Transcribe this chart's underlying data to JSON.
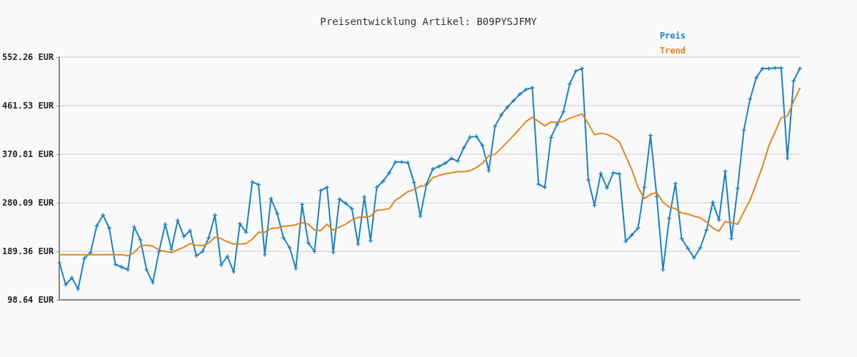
{
  "chart_data": {
    "type": "line",
    "title": "Preisentwicklung Artikel: B09PYSJFMY",
    "categories": [
      null,
      null,
      null,
      null,
      null,
      null,
      null,
      null,
      null,
      null,
      null,
      null,
      null,
      null,
      null,
      null,
      null,
      null,
      null,
      null,
      null,
      null,
      null,
      null,
      null,
      null,
      null,
      null,
      null,
      null,
      null,
      null,
      null,
      null,
      null,
      null,
      null,
      null,
      null,
      null,
      null,
      null,
      null,
      null,
      null,
      null,
      null,
      null,
      null,
      null,
      null,
      null,
      null,
      null,
      null,
      null,
      null,
      null,
      null,
      null,
      null,
      null,
      null,
      null,
      null,
      null,
      null,
      null,
      null,
      null,
      null,
      null,
      null,
      null,
      null,
      null,
      null,
      null,
      null,
      null,
      null,
      null,
      null,
      null,
      null,
      null,
      null,
      null,
      null,
      null,
      null,
      null,
      null,
      null,
      null,
      null,
      null,
      null,
      null,
      null,
      null,
      null,
      null,
      null,
      null,
      null,
      null,
      null,
      null,
      null,
      null,
      null,
      null,
      null,
      null,
      null,
      null,
      null,
      null,
      null
    ],
    "series": [
      {
        "name": "Preis",
        "color": "#1a80c9",
        "marker": "cross",
        "values": [
          168,
          127,
          140,
          119,
          176,
          187,
          237,
          257,
          233,
          165,
          160,
          155,
          235,
          211,
          155,
          131,
          189,
          240,
          193,
          247,
          217,
          228,
          181,
          189,
          215,
          257,
          164,
          180,
          151,
          241,
          225,
          319,
          314,
          183,
          288,
          260,
          215,
          196,
          157,
          277,
          205,
          189,
          303,
          309,
          187,
          287,
          279,
          269,
          203,
          291,
          209,
          309,
          320,
          336,
          356,
          356,
          355,
          318,
          255,
          315,
          343,
          348,
          354,
          363,
          358,
          383,
          403,
          404,
          387,
          340,
          423,
          444,
          459,
          471,
          483,
          492,
          495,
          315,
          309,
          402,
          427,
          450,
          502,
          526,
          531,
          323,
          275,
          335,
          308,
          336,
          334,
          208,
          220,
          233,
          309,
          406,
          292,
          155,
          251,
          316,
          213,
          195,
          177,
          196,
          229,
          281,
          248,
          339,
          213,
          307,
          416,
          474,
          514,
          531,
          531,
          532,
          532,
          363,
          508,
          531
        ]
      },
      {
        "name": "Trend",
        "color": "#e0861c",
        "values": [
          183,
          183,
          183,
          183,
          183,
          183,
          183,
          183,
          183,
          183,
          183,
          181,
          187,
          199,
          201,
          199,
          192,
          189,
          187,
          192,
          197,
          204,
          201,
          200,
          205,
          216,
          213,
          207,
          203,
          203,
          204,
          212,
          225,
          225,
          232,
          233,
          236,
          237,
          239,
          243,
          240,
          229,
          228,
          240,
          229,
          235,
          240,
          248,
          253,
          253,
          255,
          266,
          267,
          269,
          285,
          292,
          301,
          305,
          311,
          312,
          327,
          331,
          334,
          336,
          338,
          338,
          340,
          346,
          354,
          368,
          371,
          382,
          394,
          406,
          419,
          432,
          440,
          432,
          424,
          431,
          431,
          432,
          438,
          442,
          446,
          428,
          407,
          410,
          408,
          402,
          394,
          368,
          342,
          309,
          288,
          296,
          299,
          281,
          272,
          269,
          261,
          259,
          255,
          252,
          244,
          233,
          227,
          245,
          243,
          240,
          263,
          285,
          316,
          348,
          386,
          412,
          439,
          442,
          470,
          494
        ]
      }
    ],
    "ylim": [
      98.64,
      552.26
    ],
    "yticks": [
      {
        "value": 98.64,
        "label": "98.64 EUR"
      },
      {
        "value": 189.36,
        "label": "189.36 EUR"
      },
      {
        "value": 280.09,
        "label": "280.09 EUR"
      },
      {
        "value": 370.81,
        "label": "370.81 EUR"
      },
      {
        "value": 461.53,
        "label": "461.53 EUR"
      },
      {
        "value": 552.26,
        "label": "552.26 EUR"
      }
    ],
    "grid": "y",
    "legend": "top right",
    "tick_labels": "y",
    "line_style": "solid"
  }
}
